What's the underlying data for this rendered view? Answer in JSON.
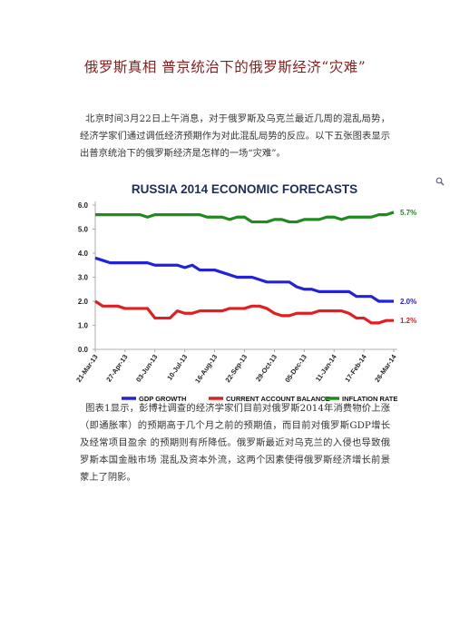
{
  "title": "俄罗斯真相 普京统治下的俄罗斯经济“灾难”",
  "paragraphs": [
    "北京时间3月22日上午消息，对于俄罗斯及乌克兰最近几周的混乱局势，经济学家们通过调低经济预期作为对此混乱局势的反应。以下五张图表显示出普京统治下的俄罗斯经济是怎样的一场“灾难”。",
    "图表1显示，彭博社调查的经济学家们目前对俄罗斯2014年消费物价上涨（即通胀率）的预期高于几个月之前的预期值，而目前对俄罗斯GDP增长及经常项目盈余 的预期则有所降低。俄罗斯最近对乌克兰的入侵也导致俄罗斯本国金融市场 混乱及资本外流，这两个因素使得俄罗斯经济增长前景蒙上了阴影。"
  ],
  "chart_data": {
    "type": "line",
    "title": "RUSSIA 2014 ECONOMIC FORECASTS",
    "categories": [
      "21-Mar-13",
      null,
      null,
      null,
      "27-Apr-13",
      null,
      null,
      null,
      "03-Jun-13",
      null,
      null,
      null,
      "10-Jul-13",
      null,
      null,
      null,
      "16-Aug-13",
      null,
      null,
      null,
      "22-Sep-13",
      null,
      null,
      null,
      "29-Oct-13",
      null,
      null,
      null,
      "05-Dec-13",
      null,
      null,
      null,
      "11-Jan-14",
      null,
      null,
      null,
      "17-Feb-14",
      null,
      null,
      null,
      "26-Mar-14"
    ],
    "series": [
      {
        "name": "GDP GROWTH",
        "color": "#2222dd",
        "values": [
          3.8,
          3.7,
          3.6,
          3.6,
          3.6,
          3.6,
          3.6,
          3.6,
          3.5,
          3.5,
          3.5,
          3.5,
          3.4,
          3.5,
          3.3,
          3.3,
          3.3,
          3.2,
          3.1,
          3.0,
          3.0,
          3.0,
          2.9,
          2.8,
          2.8,
          2.8,
          2.8,
          2.6,
          2.5,
          2.5,
          2.4,
          2.4,
          2.4,
          2.4,
          2.4,
          2.2,
          2.2,
          2.2,
          2.0,
          2.0,
          2.0
        ],
        "value_labels": [
          null,
          null,
          null,
          null,
          null,
          null,
          null,
          null,
          null,
          null,
          null,
          null,
          null,
          null,
          null,
          null,
          null,
          null,
          null,
          null,
          null,
          null,
          null,
          null,
          null,
          null,
          null,
          null,
          null,
          null,
          null,
          null,
          null,
          null,
          null,
          null,
          null,
          null,
          null,
          null,
          "2.0%"
        ]
      },
      {
        "name": "CURRENT ACCOUNT BALANCE",
        "color": "#e02020",
        "values": [
          2.0,
          1.8,
          1.8,
          1.8,
          1.7,
          1.7,
          1.7,
          1.7,
          1.3,
          1.3,
          1.3,
          1.6,
          1.5,
          1.5,
          1.6,
          1.6,
          1.6,
          1.6,
          1.7,
          1.7,
          1.7,
          1.8,
          1.8,
          1.7,
          1.5,
          1.4,
          1.4,
          1.5,
          1.5,
          1.5,
          1.6,
          1.6,
          1.6,
          1.6,
          1.5,
          1.3,
          1.3,
          1.1,
          1.1,
          1.2,
          1.2
        ],
        "value_labels": [
          null,
          null,
          null,
          null,
          null,
          null,
          null,
          null,
          null,
          null,
          null,
          null,
          null,
          null,
          null,
          null,
          null,
          null,
          null,
          null,
          null,
          null,
          null,
          null,
          null,
          null,
          null,
          null,
          null,
          null,
          null,
          null,
          null,
          null,
          null,
          null,
          null,
          null,
          null,
          null,
          "1.2%"
        ]
      },
      {
        "name": "INFLATION RATE",
        "color": "#208a20",
        "values": [
          5.6,
          5.6,
          5.6,
          5.6,
          5.6,
          5.6,
          5.6,
          5.5,
          5.6,
          5.6,
          5.6,
          5.6,
          5.6,
          5.6,
          5.6,
          5.5,
          5.5,
          5.5,
          5.4,
          5.5,
          5.5,
          5.3,
          5.3,
          5.3,
          5.4,
          5.4,
          5.3,
          5.3,
          5.4,
          5.4,
          5.4,
          5.5,
          5.5,
          5.4,
          5.5,
          5.5,
          5.5,
          5.5,
          5.6,
          5.6,
          5.7
        ],
        "value_labels": [
          null,
          null,
          null,
          null,
          null,
          null,
          null,
          null,
          null,
          null,
          null,
          null,
          null,
          null,
          null,
          null,
          null,
          null,
          null,
          null,
          null,
          null,
          null,
          null,
          null,
          null,
          null,
          null,
          null,
          null,
          null,
          null,
          null,
          null,
          null,
          null,
          null,
          null,
          null,
          null,
          "5.7%"
        ]
      }
    ],
    "ylim": [
      0,
      6
    ],
    "yticks": [
      {
        "value": 0,
        "label": "0.0"
      },
      {
        "value": 1,
        "label": "1.0"
      },
      {
        "value": 2,
        "label": "2.0"
      },
      {
        "value": 3,
        "label": "3.0"
      },
      {
        "value": 4,
        "label": "4.0"
      },
      {
        "value": 5,
        "label": "5.0"
      },
      {
        "value": 6,
        "label": "6.0"
      }
    ],
    "grid": false,
    "legend": "bottom"
  }
}
